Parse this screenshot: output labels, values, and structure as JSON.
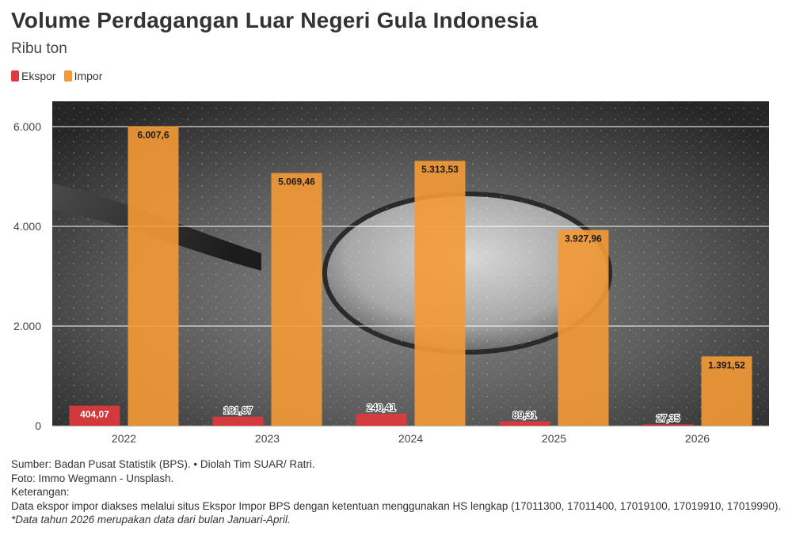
{
  "header": {
    "title": "Volume Perdagangan Luar Negeri Gula Indonesia",
    "subtitle": "Ribu ton"
  },
  "colors": {
    "ekspor": "#e0393e",
    "impor": "#f59a35",
    "plot_background": "#3a3a3a",
    "gridline": "#ffffff"
  },
  "chart_data": {
    "type": "bar",
    "title": "Volume Perdagangan Luar Negeri Gula Indonesia",
    "subtitle": "Ribu ton",
    "categories": [
      "2022",
      "2023",
      "2024",
      "2025",
      "2026"
    ],
    "series": [
      {
        "name": "Ekspor",
        "values": [
          404.07,
          181.87,
          240.41,
          89.31,
          27.35
        ],
        "labels": [
          "404,07",
          "181,87",
          "240,41",
          "89,31",
          "27,35"
        ]
      },
      {
        "name": "Impor",
        "values": [
          6007.6,
          5069.46,
          5313.53,
          3927.96,
          1391.52
        ],
        "labels": [
          "6.007,6",
          "5.069,46",
          "5.313,53",
          "3.927,96",
          "1.391,52"
        ]
      }
    ],
    "yticks": [
      0,
      2000,
      4000,
      6000
    ],
    "ytick_labels": [
      "0",
      "2.000",
      "4.000",
      "6.000"
    ],
    "ylim": [
      0,
      6000
    ],
    "grid": true,
    "legend": "top-left",
    "background": "photo of a spoon of sugar"
  },
  "notes": {
    "source": "Sumber: Badan Pusat Statistik (BPS). • Diolah Tim SUAR/ Ratri.",
    "photo": "Foto: Immo Wegmann - Unsplash.",
    "heading": "Keterangan:",
    "description": "Data ekspor impor diakses melalui situs Ekspor Impor BPS dengan ketentuan menggunakan HS lengkap (17011300, 17011400, 17019100, 17019910, 17019990).",
    "footnote": "*Data tahun 2026 merupakan data dari bulan Januari-April."
  }
}
